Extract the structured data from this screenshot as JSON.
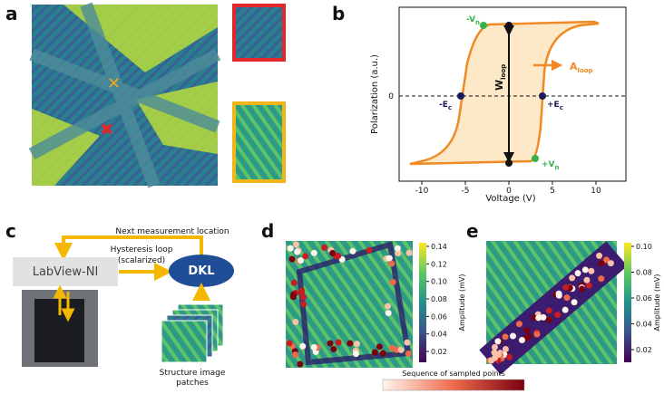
{
  "panels": {
    "a": {
      "label": "a"
    },
    "b": {
      "label": "b",
      "x_label": "Voltage (V)",
      "y_label": "Polarization (a.u.)",
      "x_ticks": [
        "-10",
        "-5",
        "0",
        "5",
        "10"
      ],
      "y_ticks": [
        "0"
      ],
      "neg_vn": {
        "text": "-V",
        "sub": "n"
      },
      "pos_vn": {
        "text": "+V",
        "sub": "n"
      },
      "neg_ec": {
        "text": "-E",
        "sub": "c"
      },
      "pos_ec": {
        "text": "+E",
        "sub": "c"
      },
      "w_loop": {
        "text": "W",
        "sub": "loop"
      },
      "a_loop": {
        "text": "A",
        "sub": "loop"
      }
    },
    "c": {
      "label": "c",
      "next_location": "Next measurement location",
      "hysteresis": "Hysteresis loop",
      "scalarized": "(scalarized)",
      "instrument": "LabView-NI",
      "model": "DKL",
      "patches_line1": "Structure image",
      "patches_line2": "patches"
    },
    "d": {
      "label": "d",
      "colorbar_label": "Amplitude (mV)",
      "colorbar_ticks": [
        "0.14",
        "0.12",
        "0.10",
        "0.08",
        "0.06",
        "0.04",
        "0.02"
      ]
    },
    "e": {
      "label": "e",
      "colorbar_label": "Amplitude (mV)",
      "colorbar_ticks": [
        "0.10",
        "0.08",
        "0.06",
        "0.04",
        "0.02"
      ]
    },
    "sequence_label": "Sequence of sampled points"
  }
}
